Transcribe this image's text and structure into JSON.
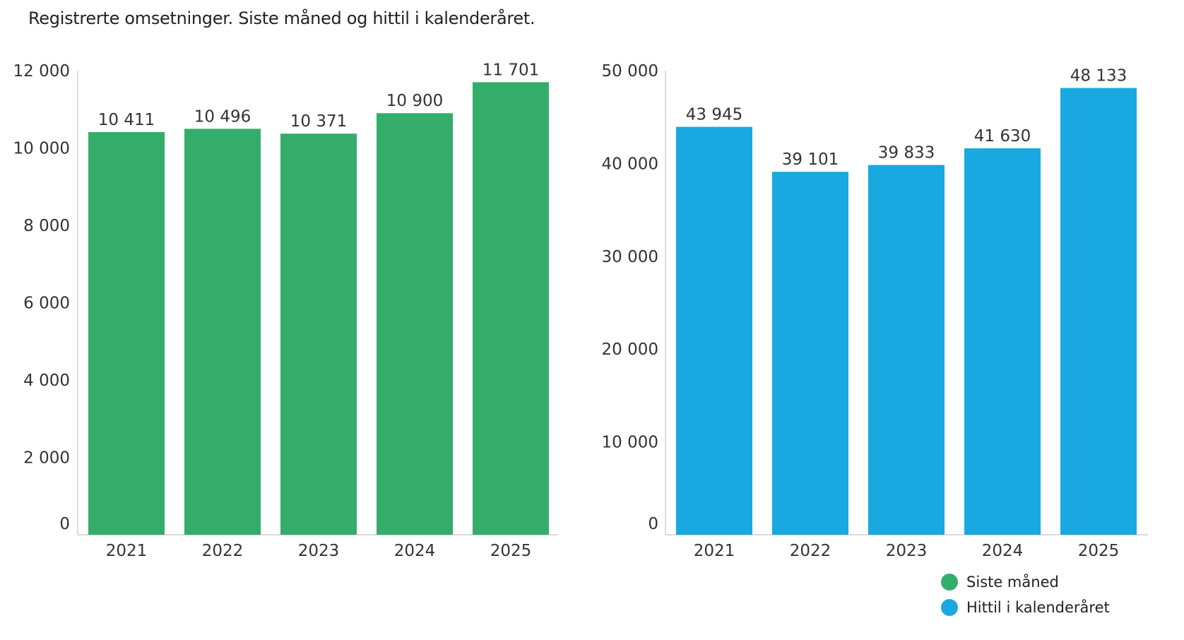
{
  "title": "Registrerte omsetninger. Siste måned og hittil i kalenderåret.",
  "colors": {
    "green": "#35ad6a",
    "blue": "#19a8e0",
    "axis": "#cfcfcf"
  },
  "legend": [
    {
      "label": "Siste måned",
      "color": "#35ad6a"
    },
    {
      "label": "Hittil i kalenderåret",
      "color": "#19a8e0"
    }
  ],
  "chart_data": [
    {
      "type": "bar",
      "categories": [
        "2021",
        "2022",
        "2023",
        "2024",
        "2025"
      ],
      "series": [
        {
          "name": "Siste måned",
          "values": [
            10411,
            10496,
            10371,
            10900,
            11701
          ]
        }
      ],
      "data_labels": [
        "10 411",
        "10 496",
        "10 371",
        "10 900",
        "11 701"
      ],
      "yticks": [
        0,
        2000,
        4000,
        6000,
        8000,
        10000,
        12000
      ],
      "ytick_labels": [
        "0",
        "2 000",
        "4 000",
        "6 000",
        "8 000",
        "10 000",
        "12 000"
      ],
      "ylim": [
        0,
        12000
      ],
      "grid": false,
      "color": "#35ad6a"
    },
    {
      "type": "bar",
      "categories": [
        "2021",
        "2022",
        "2023",
        "2024",
        "2025"
      ],
      "series": [
        {
          "name": "Hittil i kalenderåret",
          "values": [
            43945,
            39101,
            39833,
            41630,
            48133
          ]
        }
      ],
      "data_labels": [
        "43 945",
        "39 101",
        "39 833",
        "41 630",
        "48 133"
      ],
      "yticks": [
        0,
        10000,
        20000,
        30000,
        40000,
        50000
      ],
      "ytick_labels": [
        "0",
        "10 000",
        "20 000",
        "30 000",
        "40 000",
        "50 000"
      ],
      "ylim": [
        0,
        50000
      ],
      "grid": false,
      "color": "#19a8e0"
    }
  ]
}
